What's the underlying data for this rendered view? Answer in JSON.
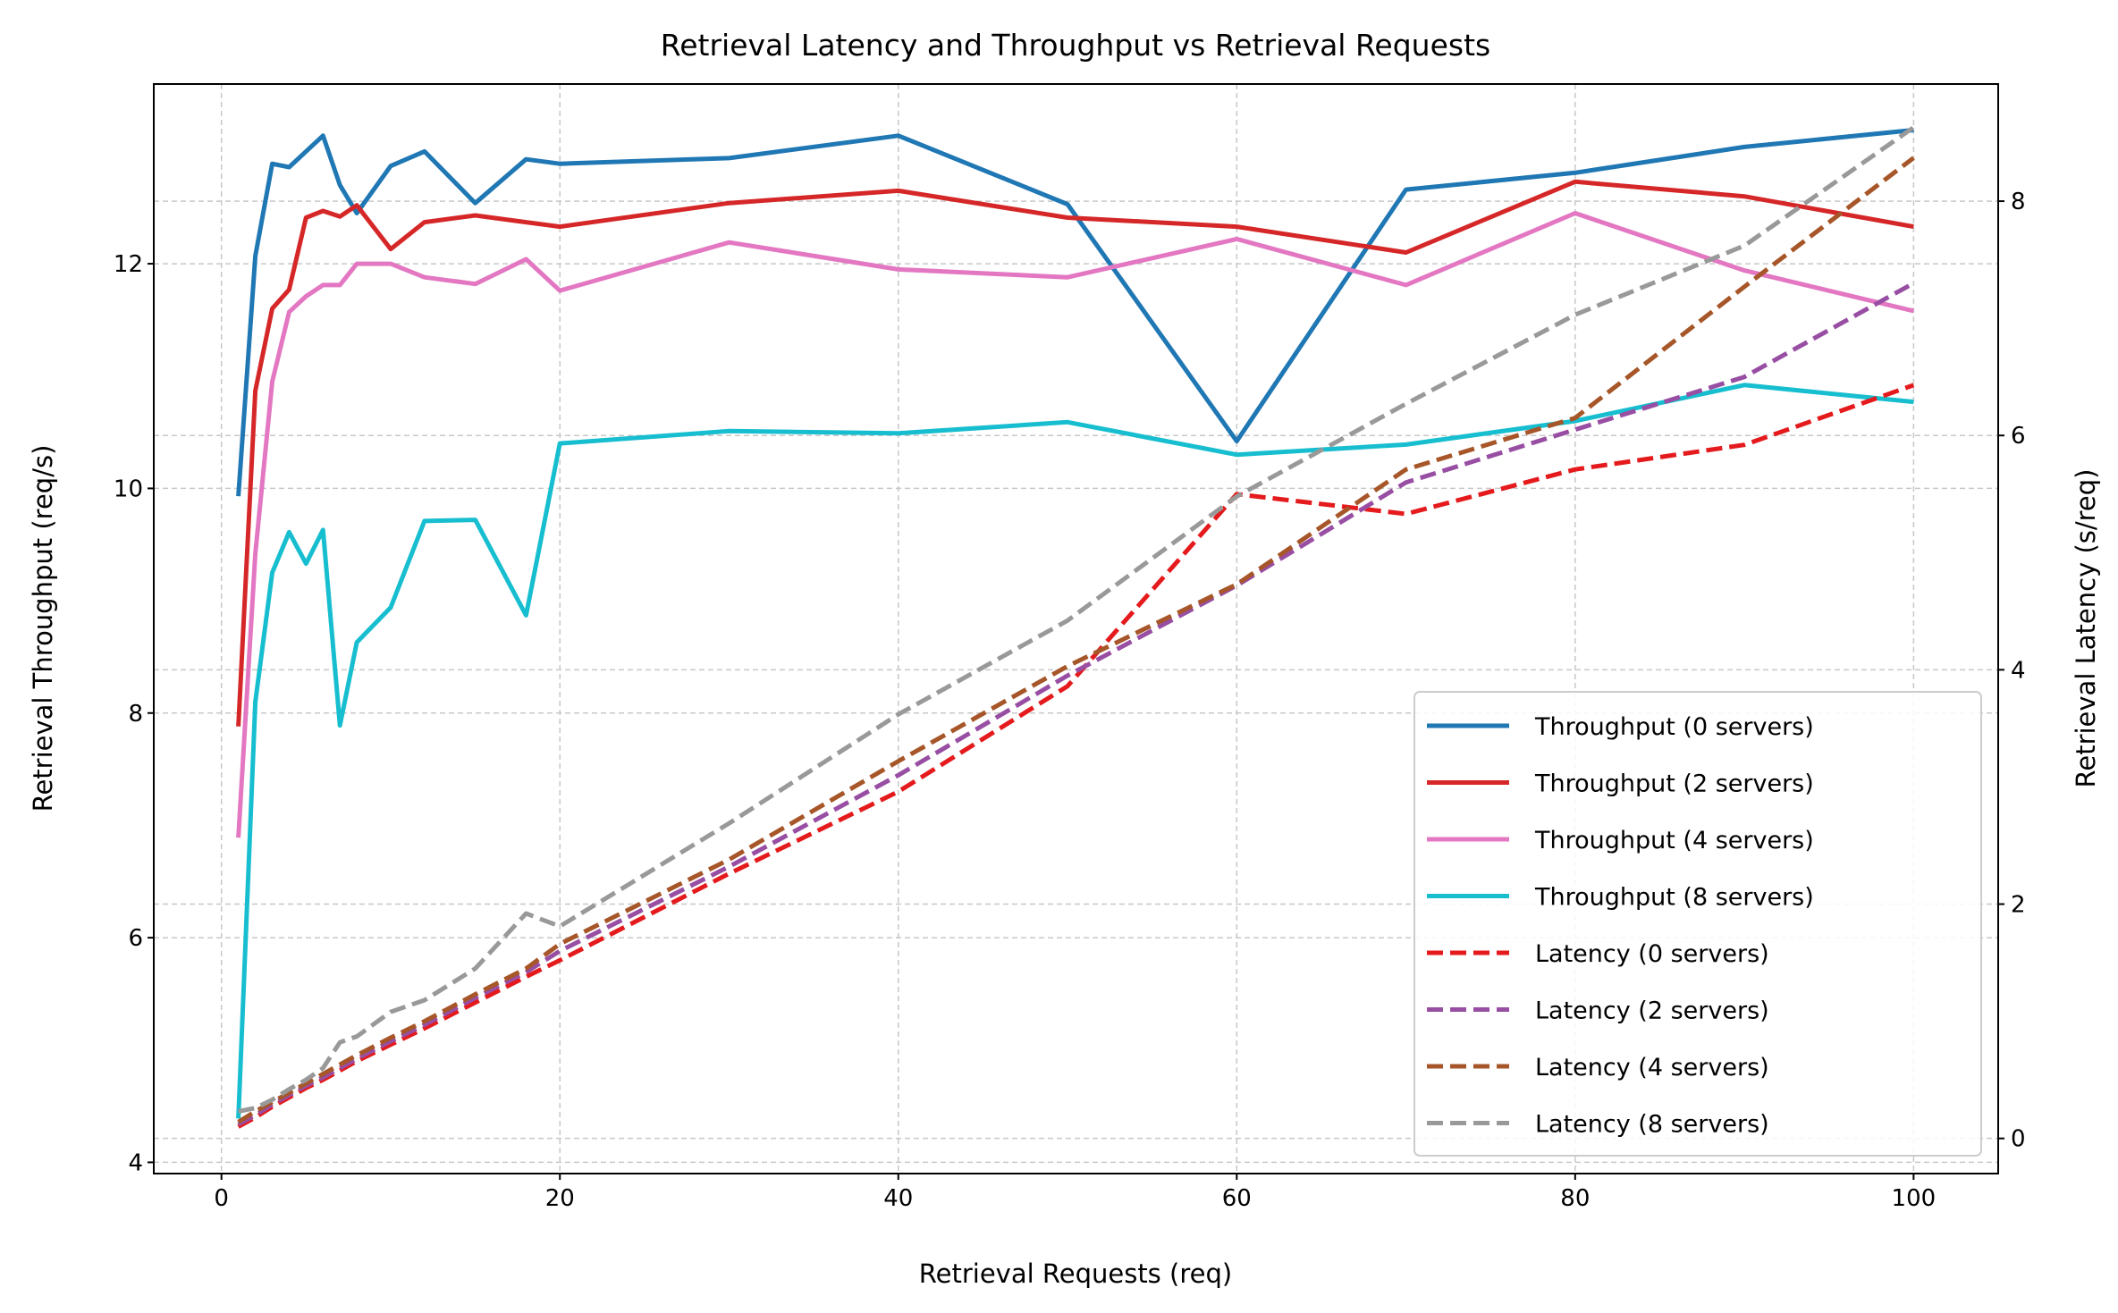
{
  "chart_data": {
    "type": "line",
    "title": "Retrieval Latency and Throughput vs Retrieval Requests",
    "xlabel": "Retrieval Requests (req)",
    "ylabel": "Retrieval Throughput (req/s)",
    "y2label": "Retrieval Latency (s/req)",
    "xlim": [
      -4,
      105
    ],
    "ylim": [
      3.9,
      13.6
    ],
    "y2lim": [
      -0.3,
      9.0
    ],
    "xticks": [
      0,
      20,
      40,
      60,
      80,
      100
    ],
    "yticks": [
      4,
      6,
      8,
      10,
      12
    ],
    "y2ticks": [
      0,
      2,
      4,
      6,
      8
    ],
    "grid": true,
    "legend_position": "bottom-right",
    "x": [
      1,
      2,
      3,
      4,
      5,
      6,
      7,
      8,
      10,
      12,
      15,
      18,
      20,
      30,
      40,
      50,
      60,
      70,
      80,
      90,
      100
    ],
    "series": [
      {
        "name": "Throughput (0 servers)",
        "axis": "left",
        "style": "solid",
        "color": "#1f77b4",
        "values": [
          9.93,
          12.07,
          12.89,
          12.86,
          13.0,
          13.14,
          12.7,
          12.45,
          12.87,
          13.0,
          12.54,
          12.93,
          12.89,
          12.94,
          13.14,
          12.53,
          10.42,
          12.66,
          12.81,
          13.04,
          13.19
        ]
      },
      {
        "name": "Throughput (2 servers)",
        "axis": "left",
        "style": "solid",
        "color": "#d62728",
        "values": [
          7.88,
          10.87,
          11.6,
          11.77,
          12.41,
          12.47,
          12.42,
          12.52,
          12.13,
          12.37,
          12.43,
          12.37,
          12.33,
          12.54,
          12.65,
          12.41,
          12.33,
          12.1,
          12.73,
          12.6,
          12.33
        ]
      },
      {
        "name": "Throughput (4 servers)",
        "axis": "left",
        "style": "solid",
        "color": "#e377c2",
        "values": [
          6.89,
          9.42,
          10.95,
          11.57,
          11.71,
          11.81,
          11.81,
          12.0,
          12.0,
          11.88,
          11.82,
          12.04,
          11.76,
          12.19,
          11.95,
          11.88,
          12.22,
          11.81,
          12.45,
          11.94,
          11.58
        ]
      },
      {
        "name": "Throughput (8 servers)",
        "axis": "left",
        "style": "solid",
        "color": "#17becf",
        "values": [
          4.39,
          8.1,
          9.25,
          9.61,
          9.33,
          9.63,
          7.89,
          8.63,
          8.94,
          9.71,
          9.72,
          8.87,
          10.4,
          10.51,
          10.49,
          10.59,
          10.3,
          10.39,
          10.6,
          10.92,
          10.77
        ]
      },
      {
        "name": "Latency (0 servers)",
        "axis": "right",
        "style": "dashed",
        "color": "#e41a1c",
        "values": [
          0.1,
          0.18,
          0.27,
          0.35,
          0.43,
          0.5,
          0.58,
          0.66,
          0.8,
          0.94,
          1.16,
          1.38,
          1.52,
          2.26,
          2.96,
          3.86,
          5.5,
          5.33,
          5.71,
          5.92,
          6.43
        ]
      },
      {
        "name": "Latency (2 servers)",
        "axis": "right",
        "style": "dashed",
        "color": "#984ea3",
        "values": [
          0.12,
          0.2,
          0.29,
          0.37,
          0.45,
          0.52,
          0.6,
          0.68,
          0.83,
          0.97,
          1.2,
          1.42,
          1.6,
          2.32,
          3.1,
          3.95,
          4.72,
          5.6,
          6.05,
          6.5,
          7.3
        ]
      },
      {
        "name": "Latency (4 servers)",
        "axis": "right",
        "style": "dashed",
        "color": "#a65628",
        "values": [
          0.14,
          0.23,
          0.31,
          0.39,
          0.47,
          0.55,
          0.63,
          0.71,
          0.86,
          1.0,
          1.23,
          1.45,
          1.66,
          2.38,
          3.22,
          4.03,
          4.73,
          5.71,
          6.15,
          7.27,
          8.37
        ]
      },
      {
        "name": "Latency (8 servers)",
        "axis": "right",
        "style": "dashed",
        "color": "#999999",
        "values": [
          0.23,
          0.26,
          0.33,
          0.42,
          0.5,
          0.6,
          0.82,
          0.87,
          1.08,
          1.18,
          1.45,
          1.92,
          1.81,
          2.69,
          3.62,
          4.42,
          5.48,
          6.27,
          7.03,
          7.62,
          8.63
        ]
      }
    ]
  }
}
